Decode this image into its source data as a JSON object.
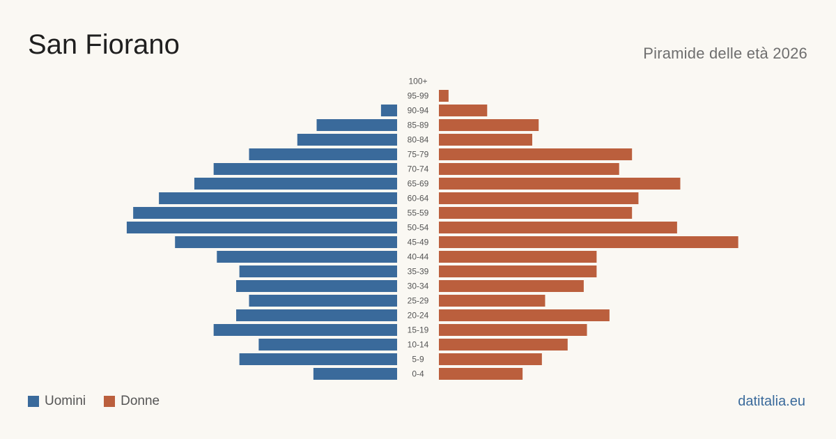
{
  "header": {
    "title": "San Fiorano",
    "subtitle": "Piramide delle età 2026"
  },
  "legend": [
    {
      "label": "Uomini",
      "color": "#3a6a9b"
    },
    {
      "label": "Donne",
      "color": "#bb5f3d"
    }
  ],
  "brand": "datitalia.eu",
  "chart_data": {
    "type": "bar",
    "orientation": "horizontal-diverging",
    "categories": [
      "100+",
      "95-99",
      "90-94",
      "85-89",
      "80-84",
      "75-79",
      "70-74",
      "65-69",
      "60-64",
      "55-59",
      "50-54",
      "45-49",
      "40-44",
      "35-39",
      "30-34",
      "25-29",
      "20-24",
      "15-19",
      "10-14",
      "5-9",
      "0-4"
    ],
    "series": [
      {
        "name": "Uomini",
        "color": "#3a6a9b",
        "values": [
          0,
          0,
          5,
          25,
          31,
          46,
          57,
          63,
          74,
          82,
          84,
          69,
          56,
          49,
          50,
          46,
          50,
          57,
          43,
          49,
          26
        ]
      },
      {
        "name": "Donne",
        "color": "#bb5f3d",
        "values": [
          0,
          3,
          15,
          31,
          29,
          60,
          56,
          75,
          62,
          60,
          74,
          93,
          49,
          49,
          45,
          33,
          53,
          46,
          40,
          32,
          26
        ]
      }
    ],
    "xlabel": "",
    "ylabel": "",
    "grid": false,
    "legend_position": "bottom-left"
  }
}
